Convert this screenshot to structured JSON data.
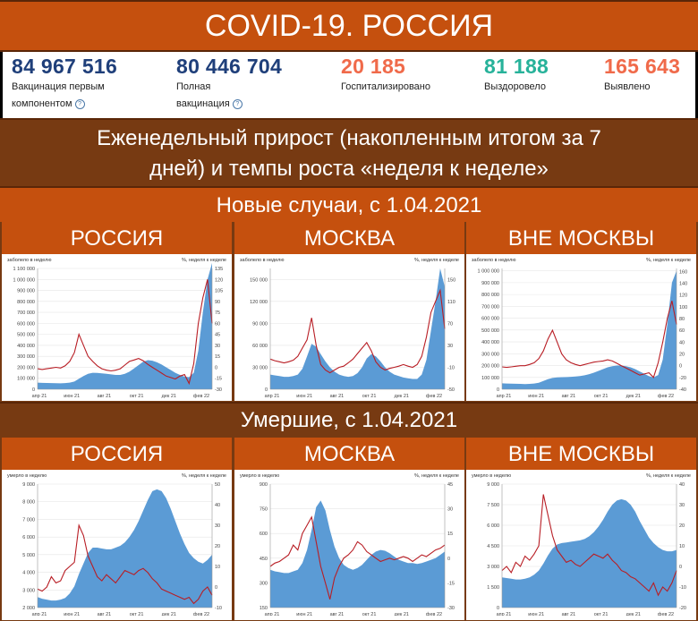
{
  "header": {
    "title": "COVID-19. РОССИЯ"
  },
  "stats": [
    {
      "value": "84 967 516",
      "label_line1": "Вакцинация первым",
      "label_line2": "компонентом",
      "color": "#1f3f7a",
      "help": true
    },
    {
      "value": "80 446 704",
      "label_line1": "Полная",
      "label_line2": "вакцинация",
      "color": "#1f3f7a",
      "help": true
    },
    {
      "value": "20 185",
      "label_line1": "Госпитализировано",
      "label_line2": "",
      "color": "#f06a4a",
      "help": false
    },
    {
      "value": "81 188",
      "label_line1": "Выздоровело",
      "label_line2": "",
      "color": "#27b29a",
      "help": false
    },
    {
      "value": "165 643",
      "label_line1": "Выявлено",
      "label_line2": "",
      "color": "#f06a4a",
      "help": false
    }
  ],
  "subtitle": {
    "line1": "Еженедельный прирост (накопленным итогом за 7",
    "line2": "дней) и темпы роста «неделя к неделе»"
  },
  "sections": {
    "new_cases": "Новые случаи, с 1.04.2021",
    "deaths": "Умершие, с 1.04.2021"
  },
  "colors": {
    "band": "#c5500e",
    "band_dark": "#773a12",
    "area": "#5b9bd5",
    "line": "#b81d24"
  },
  "chart_data": [
    {
      "type": "area",
      "panel": "РОССИЯ",
      "ylabel_left": "заболело в неделю",
      "ylabel_right": "%, неделя к неделе",
      "x_ticks": [
        "апр 21",
        "июн 21",
        "авг 21",
        "окт 21",
        "дек 21",
        "фев 22"
      ],
      "y_left_ticks": [
        0,
        100000,
        200000,
        300000,
        400000,
        500000,
        600000,
        700000,
        800000,
        900000,
        1000000,
        1100000
      ],
      "y_left_tick_labels": [
        "0",
        "100 000",
        "200 000",
        "300 000",
        "400 000",
        "500 000",
        "600 000",
        "700 000",
        "800 000",
        "900 000",
        "1 000 000",
        "1 100 000"
      ],
      "y_right_ticks": [
        -30,
        -15,
        0,
        15,
        30,
        45,
        60,
        75,
        90,
        105,
        120,
        135
      ],
      "ylim_left": [
        0,
        1100000
      ],
      "ylim_right": [
        -30,
        135
      ],
      "series": [
        {
          "axis": "left",
          "kind": "area",
          "values": [
            60000,
            58000,
            57000,
            56000,
            55000,
            54000,
            56000,
            60000,
            70000,
            95000,
            120000,
            140000,
            150000,
            148000,
            145000,
            140000,
            135000,
            130000,
            130000,
            140000,
            160000,
            190000,
            220000,
            250000,
            265000,
            260000,
            245000,
            225000,
            200000,
            175000,
            150000,
            130000,
            115000,
            110000,
            150000,
            350000,
            700000,
            1000000,
            1150000
          ]
        },
        {
          "axis": "right",
          "kind": "line",
          "values": [
            -2,
            -3,
            -2,
            -1,
            0,
            -1,
            2,
            8,
            20,
            45,
            30,
            15,
            8,
            2,
            -2,
            -4,
            -5,
            -4,
            -2,
            3,
            8,
            10,
            12,
            9,
            4,
            0,
            -4,
            -8,
            -12,
            -14,
            -16,
            -12,
            -10,
            -22,
            5,
            60,
            95,
            120,
            60
          ]
        }
      ]
    },
    {
      "type": "area",
      "panel": "МОСКВА",
      "ylabel_left": "заболело в неделю",
      "ylabel_right": "%, неделя к неделе",
      "x_ticks": [
        "апр 21",
        "июн 21",
        "авг 21",
        "окт 21",
        "дек 21",
        "фев 22"
      ],
      "y_left_ticks": [
        0,
        30000,
        60000,
        90000,
        120000,
        150000
      ],
      "y_left_tick_labels": [
        "0",
        "30 000",
        "60 000",
        "90 000",
        "120 000",
        "150 000"
      ],
      "y_right_ticks": [
        -50,
        -10,
        30,
        70,
        110,
        150
      ],
      "ylim_left": [
        0,
        165000
      ],
      "ylim_right": [
        -50,
        170
      ],
      "series": [
        {
          "axis": "left",
          "kind": "area",
          "values": [
            20000,
            19000,
            18000,
            17000,
            17000,
            18000,
            20000,
            28000,
            45000,
            62000,
            58000,
            48000,
            38000,
            30000,
            24000,
            20000,
            18000,
            17000,
            18000,
            22000,
            30000,
            42000,
            48000,
            45000,
            38000,
            30000,
            24000,
            20000,
            18000,
            16000,
            15000,
            14000,
            14000,
            20000,
            40000,
            80000,
            120000,
            165000,
            140000
          ]
        },
        {
          "axis": "right",
          "kind": "line",
          "values": [
            5,
            2,
            0,
            -2,
            0,
            3,
            10,
            25,
            40,
            80,
            30,
            -5,
            -15,
            -20,
            -15,
            -10,
            -8,
            -2,
            5,
            15,
            25,
            35,
            20,
            0,
            -10,
            -15,
            -12,
            -10,
            -8,
            -5,
            -8,
            -10,
            -5,
            10,
            45,
            90,
            110,
            130,
            60
          ]
        }
      ]
    },
    {
      "type": "area",
      "panel": "ВНЕ МОСКВЫ",
      "ylabel_left": "заболело в неделю",
      "ylabel_right": "%, неделя к неделе",
      "x_ticks": [
        "апр 21",
        "июн 21",
        "авг 21",
        "окт 21",
        "дек 21",
        "фев 22"
      ],
      "y_left_ticks": [
        0,
        100000,
        200000,
        300000,
        400000,
        500000,
        600000,
        700000,
        800000,
        900000,
        1000000
      ],
      "y_left_tick_labels": [
        "0",
        "100 000",
        "200 000",
        "300 000",
        "400 000",
        "500 000",
        "600 000",
        "700 000",
        "800 000",
        "900 000",
        "1 000 000"
      ],
      "y_right_ticks": [
        -40,
        -20,
        0,
        20,
        40,
        60,
        80,
        100,
        120,
        140,
        160
      ],
      "ylim_left": [
        0,
        1020000
      ],
      "ylim_right": [
        -40,
        165
      ],
      "series": [
        {
          "axis": "left",
          "kind": "area",
          "values": [
            50000,
            48000,
            47000,
            46000,
            45000,
            44000,
            45000,
            48000,
            55000,
            70000,
            85000,
            95000,
            100000,
            102000,
            103000,
            105000,
            108000,
            112000,
            118000,
            128000,
            140000,
            155000,
            170000,
            185000,
            195000,
            200000,
            200000,
            195000,
            185000,
            170000,
            150000,
            130000,
            110000,
            100000,
            120000,
            250000,
            550000,
            900000,
            1000000
          ]
        },
        {
          "axis": "right",
          "kind": "line",
          "values": [
            -2,
            -3,
            -2,
            -1,
            0,
            0,
            2,
            5,
            12,
            25,
            45,
            60,
            40,
            20,
            10,
            5,
            2,
            0,
            2,
            4,
            6,
            7,
            8,
            10,
            8,
            4,
            0,
            -4,
            -8,
            -12,
            -16,
            -14,
            -12,
            -20,
            5,
            40,
            80,
            110,
            70
          ]
        }
      ]
    },
    {
      "type": "area",
      "panel": "РОССИЯ",
      "ylabel_left": "умерло в неделю",
      "ylabel_right": "%, неделя к неделе",
      "x_ticks": [
        "апр 21",
        "июн 21",
        "авг 21",
        "окт 21",
        "дек 21",
        "фев 22"
      ],
      "y_left_ticks": [
        2000,
        3000,
        4000,
        5000,
        6000,
        7000,
        8000,
        9000
      ],
      "y_left_tick_labels": [
        "2 000",
        "3 000",
        "4 000",
        "5 000",
        "6 000",
        "7 000",
        "8 000",
        "9 000"
      ],
      "y_right_ticks": [
        -10,
        0,
        10,
        20,
        30,
        40,
        50
      ],
      "ylim_left": [
        2000,
        9000
      ],
      "ylim_right": [
        -10,
        50
      ],
      "series": [
        {
          "axis": "left",
          "kind": "area",
          "values": [
            2600,
            2500,
            2450,
            2400,
            2400,
            2450,
            2550,
            2800,
            3200,
            3900,
            4500,
            5100,
            5400,
            5400,
            5350,
            5300,
            5300,
            5400,
            5500,
            5700,
            6000,
            6400,
            6900,
            7500,
            8100,
            8600,
            8700,
            8600,
            8200,
            7600,
            6900,
            6200,
            5600,
            5100,
            4800,
            4600,
            4500,
            4700,
            5000
          ]
        },
        {
          "axis": "right",
          "kind": "line",
          "values": [
            -1,
            -2,
            0,
            5,
            2,
            3,
            8,
            10,
            12,
            30,
            25,
            15,
            10,
            5,
            3,
            6,
            4,
            2,
            5,
            8,
            7,
            6,
            8,
            9,
            7,
            4,
            2,
            -1,
            -2,
            -3,
            -4,
            -5,
            -6,
            -5,
            -8,
            -6,
            -2,
            0,
            -4
          ]
        }
      ]
    },
    {
      "type": "area",
      "panel": "МОСКВА",
      "ylabel_left": "умерло в неделю",
      "ylabel_right": "%, неделя к неделе",
      "x_ticks": [
        "апр 21",
        "июн 21",
        "авг 21",
        "окт 21",
        "дек 21",
        "фев 22"
      ],
      "y_left_ticks": [
        150,
        300,
        450,
        600,
        750,
        900
      ],
      "y_left_tick_labels": [
        "150",
        "300",
        "450",
        "600",
        "750",
        "900"
      ],
      "y_right_ticks": [
        -30,
        -15,
        0,
        15,
        30,
        45
      ],
      "ylim_left": [
        150,
        900
      ],
      "ylim_right": [
        -30,
        45
      ],
      "series": [
        {
          "axis": "left",
          "kind": "area",
          "values": [
            380,
            370,
            365,
            360,
            360,
            370,
            380,
            420,
            500,
            620,
            760,
            800,
            740,
            620,
            520,
            450,
            410,
            390,
            380,
            390,
            410,
            440,
            470,
            490,
            500,
            495,
            480,
            460,
            440,
            430,
            420,
            420,
            415,
            420,
            430,
            440,
            450,
            470,
            490
          ]
        },
        {
          "axis": "right",
          "kind": "line",
          "values": [
            -5,
            -3,
            -2,
            0,
            2,
            8,
            5,
            15,
            20,
            25,
            10,
            -5,
            -15,
            -25,
            -12,
            -5,
            0,
            2,
            5,
            10,
            8,
            4,
            2,
            0,
            -2,
            -1,
            0,
            -1,
            0,
            1,
            0,
            -2,
            0,
            2,
            1,
            3,
            5,
            6,
            8
          ]
        }
      ]
    },
    {
      "type": "area",
      "panel": "ВНЕ МОСКВЫ",
      "ylabel_left": "умерло в неделю",
      "ylabel_right": "%, неделя к неделе",
      "x_ticks": [
        "апр 21",
        "июн 21",
        "авг 21",
        "окт 21",
        "дек 21",
        "фев 22"
      ],
      "y_left_ticks": [
        0,
        1500,
        3000,
        4500,
        6000,
        7500,
        9000
      ],
      "y_left_tick_labels": [
        "0",
        "1 500",
        "3 000",
        "4 500",
        "6 000",
        "7 500",
        "9 000"
      ],
      "y_right_ticks": [
        -20,
        -10,
        0,
        10,
        20,
        30,
        40
      ],
      "ylim_left": [
        0,
        9000
      ],
      "ylim_right": [
        -20,
        40
      ],
      "series": [
        {
          "axis": "left",
          "kind": "area",
          "values": [
            2200,
            2150,
            2100,
            2050,
            2050,
            2100,
            2200,
            2400,
            2700,
            3200,
            3800,
            4300,
            4600,
            4700,
            4750,
            4800,
            4850,
            4900,
            5000,
            5200,
            5500,
            5900,
            6400,
            7000,
            7500,
            7800,
            7900,
            7800,
            7500,
            7000,
            6300,
            5700,
            5100,
            4700,
            4400,
            4200,
            4100,
            4100,
            4200
          ]
        },
        {
          "axis": "right",
          "kind": "line",
          "values": [
            -2,
            0,
            -3,
            2,
            0,
            5,
            3,
            6,
            10,
            35,
            25,
            15,
            8,
            5,
            2,
            3,
            1,
            0,
            2,
            4,
            6,
            5,
            4,
            6,
            3,
            1,
            -2,
            -3,
            -5,
            -6,
            -8,
            -10,
            -12,
            -8,
            -14,
            -10,
            -12,
            -8,
            -2
          ]
        }
      ]
    }
  ]
}
